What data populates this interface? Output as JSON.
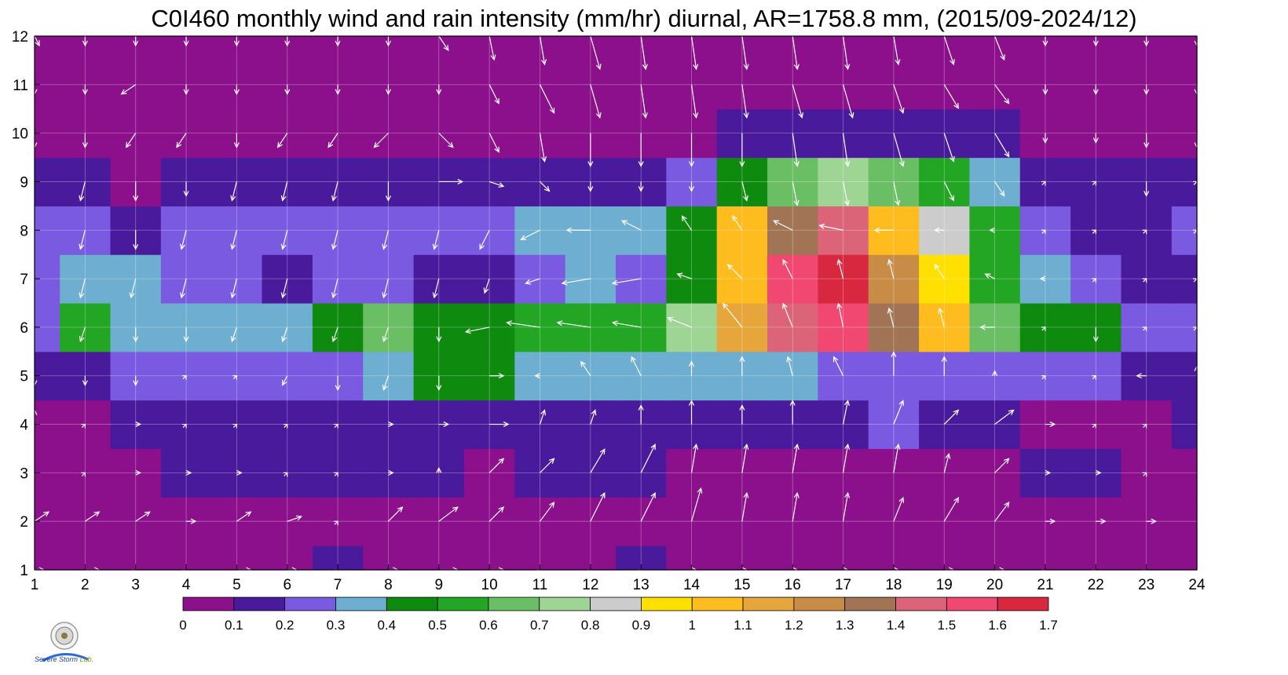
{
  "title": "C0I460 monthly wind and rain intensity (mm/hr) diurnal, AR=1758.8 mm, (2015/09-2024/12)",
  "logo": {
    "line1": "Severe",
    "line2": "Storm",
    "suffix": "Lab."
  },
  "chart_data": {
    "type": "heatmap",
    "title": "C0I460 monthly wind and rain intensity (mm/hr) diurnal, AR=1758.8 mm, (2015/09-2024/12)",
    "xlabel": "",
    "ylabel": "",
    "x": [
      1,
      2,
      3,
      4,
      5,
      6,
      7,
      8,
      9,
      10,
      11,
      12,
      13,
      14,
      15,
      16,
      17,
      18,
      19,
      20,
      21,
      22,
      23,
      24
    ],
    "y": [
      1,
      2,
      3,
      4,
      5,
      6,
      7,
      8,
      9,
      10,
      11,
      12
    ],
    "xlim": [
      1,
      24
    ],
    "ylim": [
      1,
      12
    ],
    "grid": true,
    "z_rows_by_y": [
      [
        0.05,
        0.05,
        0.05,
        0.05,
        0.05,
        0.05,
        0.1,
        0.05,
        0.05,
        0.05,
        0.05,
        0.05,
        0.1,
        0.05,
        0.05,
        0.05,
        0.05,
        0.05,
        0.05,
        0.05,
        0.05,
        0.05,
        0.05,
        0.05
      ],
      [
        0.05,
        0.05,
        0.05,
        0.05,
        0.05,
        0.05,
        0.05,
        0.05,
        0.05,
        0.05,
        0.05,
        0.05,
        0.05,
        0.05,
        0.05,
        0.05,
        0.05,
        0.05,
        0.05,
        0.05,
        0.05,
        0.05,
        0.05,
        0.05
      ],
      [
        0.05,
        0.05,
        0.05,
        0.15,
        0.15,
        0.15,
        0.15,
        0.15,
        0.15,
        0.05,
        0.15,
        0.15,
        0.15,
        0.05,
        0.05,
        0.05,
        0.05,
        0.05,
        0.05,
        0.05,
        0.15,
        0.15,
        0.05,
        0.05
      ],
      [
        0.05,
        0.05,
        0.15,
        0.15,
        0.15,
        0.15,
        0.15,
        0.15,
        0.15,
        0.15,
        0.15,
        0.15,
        0.15,
        0.15,
        0.15,
        0.15,
        0.15,
        0.2,
        0.15,
        0.15,
        0.05,
        0.05,
        0.05,
        0.15
      ],
      [
        0.15,
        0.15,
        0.25,
        0.25,
        0.25,
        0.25,
        0.25,
        0.35,
        0.45,
        0.45,
        0.35,
        0.35,
        0.35,
        0.35,
        0.35,
        0.35,
        0.25,
        0.25,
        0.25,
        0.25,
        0.25,
        0.25,
        0.15,
        0.15
      ],
      [
        0.25,
        0.55,
        0.35,
        0.35,
        0.35,
        0.35,
        0.45,
        0.65,
        0.45,
        0.45,
        0.55,
        0.55,
        0.55,
        0.75,
        1.15,
        1.45,
        1.55,
        1.35,
        1.05,
        0.65,
        0.45,
        0.45,
        0.25,
        0.25
      ],
      [
        0.25,
        0.35,
        0.35,
        0.25,
        0.25,
        0.15,
        0.25,
        0.25,
        0.15,
        0.15,
        0.25,
        0.35,
        0.25,
        0.45,
        1.05,
        1.55,
        1.65,
        1.25,
        0.95,
        0.55,
        0.35,
        0.25,
        0.15,
        0.15
      ],
      [
        0.25,
        0.25,
        0.15,
        0.25,
        0.25,
        0.25,
        0.25,
        0.25,
        0.25,
        0.25,
        0.35,
        0.35,
        0.35,
        0.45,
        1.05,
        1.35,
        1.45,
        1.05,
        0.85,
        0.55,
        0.25,
        0.15,
        0.15,
        0.25
      ],
      [
        0.15,
        0.15,
        0.05,
        0.15,
        0.15,
        0.15,
        0.15,
        0.15,
        0.15,
        0.15,
        0.15,
        0.15,
        0.15,
        0.25,
        0.45,
        0.65,
        0.75,
        0.65,
        0.55,
        0.35,
        0.15,
        0.15,
        0.15,
        0.15
      ],
      [
        0.05,
        0.05,
        0.05,
        0.05,
        0.05,
        0.05,
        0.05,
        0.05,
        0.05,
        0.05,
        0.05,
        0.05,
        0.05,
        0.05,
        0.15,
        0.15,
        0.15,
        0.15,
        0.15,
        0.15,
        0.05,
        0.05,
        0.05,
        0.05
      ],
      [
        0.05,
        0.05,
        0.05,
        0.05,
        0.05,
        0.05,
        0.05,
        0.05,
        0.05,
        0.05,
        0.05,
        0.05,
        0.05,
        0.05,
        0.05,
        0.05,
        0.05,
        0.05,
        0.05,
        0.05,
        0.05,
        0.05,
        0.05,
        0.05
      ],
      [
        0.05,
        0.05,
        0.05,
        0.05,
        0.05,
        0.05,
        0.05,
        0.05,
        0.05,
        0.05,
        0.05,
        0.05,
        0.05,
        0.05,
        0.05,
        0.05,
        0.05,
        0.05,
        0.05,
        0.05,
        0.05,
        0.05,
        0.05,
        0.05
      ]
    ],
    "colorbar": {
      "levels": [
        "0",
        "0.1",
        "0.2",
        "0.3",
        "0.4",
        "0.5",
        "0.6",
        "0.7",
        "0.8",
        "0.9",
        "1",
        "1.1",
        "1.2",
        "1.3",
        "1.4",
        "1.5",
        "1.6",
        "1.7"
      ],
      "colors": [
        "#8c108c",
        "#4a1a9c",
        "#7a5ae0",
        "#6eaed0",
        "#0e8a0e",
        "#23a623",
        "#6abf64",
        "#9ed494",
        "#cccccc",
        "#ffe000",
        "#ffbc1e",
        "#e6a63c",
        "#c88c46",
        "#a07454",
        "#dc6478",
        "#f04870",
        "#d82840"
      ]
    },
    "wind_arrows_u_by_y": [
      [
        0.2,
        0.3,
        0.0,
        0.0,
        0.3,
        0.2,
        0.0,
        0.2,
        0.4,
        0.3,
        0.0,
        0.0,
        0.0,
        0.1,
        0.1,
        0.1,
        0.1,
        0.1,
        0.2,
        0.2,
        0.0,
        0.0,
        0.0,
        0.2
      ],
      [
        0.3,
        0.3,
        0.3,
        0.2,
        0.3,
        0.3,
        0.0,
        0.3,
        0.4,
        0.3,
        0.3,
        0.3,
        0.3,
        0.2,
        0.1,
        0.1,
        0.1,
        0.2,
        0.3,
        0.3,
        0.2,
        0.2,
        0.2,
        0.3
      ],
      [
        0.0,
        0.0,
        0.1,
        0.1,
        0.1,
        0.0,
        0.0,
        0.1,
        0.0,
        0.3,
        0.3,
        0.3,
        0.3,
        0.1,
        0.1,
        0.1,
        0.1,
        0.1,
        0.1,
        0.3,
        0.1,
        0.1,
        0.0,
        0.3
      ],
      [
        0.0,
        0.0,
        0.1,
        0.0,
        0.0,
        0.0,
        0.0,
        0.1,
        0.2,
        0.4,
        0.1,
        0.1,
        0.0,
        0.0,
        0.0,
        0.0,
        0.1,
        0.2,
        0.3,
        0.4,
        0.2,
        0.0,
        0.0,
        0.2
      ],
      [
        0.0,
        0.0,
        0.0,
        0.0,
        0.0,
        -0.1,
        0.0,
        -0.1,
        0.0,
        0.3,
        -0.1,
        -0.2,
        -0.2,
        0.0,
        0.0,
        -0.1,
        -0.2,
        0.0,
        0.0,
        0.0,
        0.0,
        0.0,
        -0.2,
        0.0
      ],
      [
        -0.1,
        -0.1,
        0.0,
        0.0,
        -0.1,
        -0.1,
        -0.1,
        -0.1,
        0.0,
        -0.5,
        -0.7,
        -0.7,
        -0.6,
        -0.5,
        -0.4,
        -0.2,
        -0.1,
        -0.1,
        -0.1,
        -0.3,
        0.0,
        0.0,
        0.0,
        0.0
      ],
      [
        -0.1,
        -0.1,
        -0.1,
        -0.1,
        -0.1,
        -0.1,
        -0.1,
        -0.1,
        -0.1,
        -0.1,
        -0.3,
        -0.6,
        -0.6,
        -0.3,
        -0.3,
        -0.2,
        -0.1,
        -0.1,
        -0.2,
        -0.2,
        -0.1,
        0.0,
        0.0,
        0.0
      ],
      [
        -0.1,
        -0.1,
        0.0,
        -0.1,
        -0.1,
        -0.1,
        -0.1,
        -0.1,
        -0.1,
        -0.2,
        -0.4,
        -0.5,
        -0.4,
        -0.2,
        -0.2,
        -0.4,
        -0.5,
        -0.4,
        -0.2,
        -0.1,
        0.0,
        0.0,
        0.0,
        0.0
      ],
      [
        -0.1,
        -0.1,
        0.0,
        0.0,
        -0.1,
        -0.1,
        -0.1,
        0.0,
        0.5,
        0.3,
        0.2,
        0.0,
        0.0,
        0.0,
        0.1,
        0.1,
        0.1,
        0.1,
        0.2,
        0.2,
        0.0,
        0.0,
        0.0,
        0.0
      ],
      [
        0.0,
        0.0,
        -0.2,
        -0.2,
        0.0,
        -0.2,
        -0.2,
        -0.3,
        0.3,
        0.2,
        0.1,
        0.0,
        0.0,
        0.0,
        0.0,
        0.1,
        0.1,
        0.2,
        0.2,
        0.3,
        0.0,
        0.0,
        0.0,
        0.0
      ],
      [
        0.0,
        0.0,
        -0.3,
        0.0,
        0.0,
        0.0,
        0.0,
        0.0,
        0.0,
        0.2,
        0.3,
        0.2,
        0.1,
        0.1,
        0.1,
        0.2,
        0.2,
        0.2,
        0.3,
        0.3,
        0.0,
        0.0,
        0.0,
        0.0
      ],
      [
        0.1,
        0.0,
        0.0,
        0.0,
        0.0,
        0.0,
        0.0,
        0.0,
        0.2,
        0.1,
        0.1,
        0.2,
        0.1,
        0.1,
        0.1,
        0.1,
        0.1,
        0.1,
        0.2,
        0.2,
        0.0,
        0.0,
        0.0,
        0.0
      ]
    ],
    "wind_arrows_v_by_y": [
      [
        0.0,
        0.0,
        0.0,
        0.0,
        0.0,
        0.0,
        0.0,
        0.0,
        0.0,
        0.0,
        0.0,
        0.0,
        0.0,
        0.0,
        0.0,
        0.0,
        0.0,
        0.0,
        0.0,
        0.0,
        0.0,
        0.0,
        0.0,
        0.0
      ],
      [
        0.2,
        0.2,
        0.2,
        0.0,
        0.2,
        0.1,
        0.0,
        0.3,
        0.3,
        0.3,
        0.4,
        0.6,
        0.6,
        0.7,
        0.6,
        0.6,
        0.6,
        0.5,
        0.5,
        0.4,
        0.0,
        0.0,
        0.0,
        0.0
      ],
      [
        0.0,
        0.0,
        0.0,
        0.0,
        0.0,
        0.0,
        0.0,
        0.0,
        0.1,
        0.3,
        0.3,
        0.5,
        0.6,
        0.6,
        0.6,
        0.6,
        0.6,
        0.6,
        0.4,
        0.3,
        0.0,
        0.0,
        0.0,
        0.0
      ],
      [
        0.3,
        0.0,
        0.0,
        0.0,
        0.0,
        0.0,
        0.0,
        0.0,
        0.0,
        0.0,
        0.3,
        0.3,
        0.4,
        0.5,
        0.4,
        0.5,
        0.5,
        0.5,
        0.3,
        0.3,
        0.0,
        0.0,
        0.0,
        0.0
      ],
      [
        -0.2,
        -0.2,
        -0.2,
        0.0,
        0.0,
        -0.2,
        -0.3,
        -0.3,
        -0.3,
        0.0,
        0.0,
        0.3,
        0.4,
        0.3,
        0.4,
        0.4,
        0.4,
        0.5,
        0.4,
        0.1,
        0.0,
        0.0,
        0.0,
        0.2
      ],
      [
        -0.3,
        -0.3,
        -0.3,
        -0.3,
        -0.3,
        -0.3,
        -0.3,
        -0.3,
        -0.3,
        -0.1,
        0.1,
        0.1,
        0.1,
        0.2,
        0.5,
        0.5,
        0.5,
        0.4,
        0.4,
        0.0,
        0.0,
        -0.3,
        0.0,
        0.0
      ],
      [
        -0.4,
        -0.4,
        -0.4,
        -0.4,
        -0.4,
        -0.4,
        -0.4,
        -0.4,
        -0.4,
        -0.3,
        -0.1,
        -0.1,
        -0.1,
        0.1,
        0.3,
        0.4,
        0.4,
        0.4,
        0.3,
        0.1,
        0.0,
        0.0,
        0.0,
        0.0
      ],
      [
        -0.4,
        -0.4,
        -0.4,
        -0.4,
        -0.4,
        -0.4,
        -0.4,
        -0.4,
        -0.4,
        -0.4,
        -0.2,
        0.0,
        0.2,
        0.3,
        0.3,
        0.2,
        0.1,
        0.0,
        0.0,
        0.0,
        0.0,
        0.0,
        0.0,
        0.0
      ],
      [
        -0.4,
        -0.4,
        -0.4,
        -0.3,
        -0.4,
        -0.4,
        -0.4,
        -0.4,
        0.0,
        -0.1,
        -0.2,
        -0.2,
        -0.2,
        -0.2,
        -0.4,
        -0.5,
        -0.5,
        -0.5,
        -0.4,
        -0.3,
        0.0,
        0.0,
        -0.3,
        0.0
      ],
      [
        -0.3,
        -0.3,
        -0.3,
        -0.3,
        -0.3,
        -0.3,
        -0.3,
        -0.3,
        -0.3,
        -0.4,
        -0.6,
        -0.7,
        -0.7,
        -0.7,
        -0.7,
        -0.7,
        -0.7,
        -0.7,
        -0.6,
        -0.5,
        -0.2,
        -0.2,
        -0.3,
        -0.3
      ],
      [
        -0.2,
        -0.2,
        -0.2,
        -0.2,
        -0.2,
        -0.2,
        -0.2,
        -0.2,
        -0.2,
        -0.4,
        -0.6,
        -0.7,
        -0.7,
        -0.7,
        -0.7,
        -0.7,
        -0.7,
        -0.6,
        -0.5,
        -0.4,
        -0.2,
        -0.2,
        -0.2,
        -0.2
      ],
      [
        -0.2,
        -0.2,
        -0.2,
        -0.2,
        -0.2,
        -0.2,
        -0.2,
        -0.2,
        -0.3,
        -0.5,
        -0.6,
        -0.7,
        -0.7,
        -0.7,
        -0.7,
        -0.7,
        -0.7,
        -0.6,
        -0.6,
        -0.5,
        -0.2,
        -0.2,
        -0.2,
        -0.2
      ]
    ]
  }
}
